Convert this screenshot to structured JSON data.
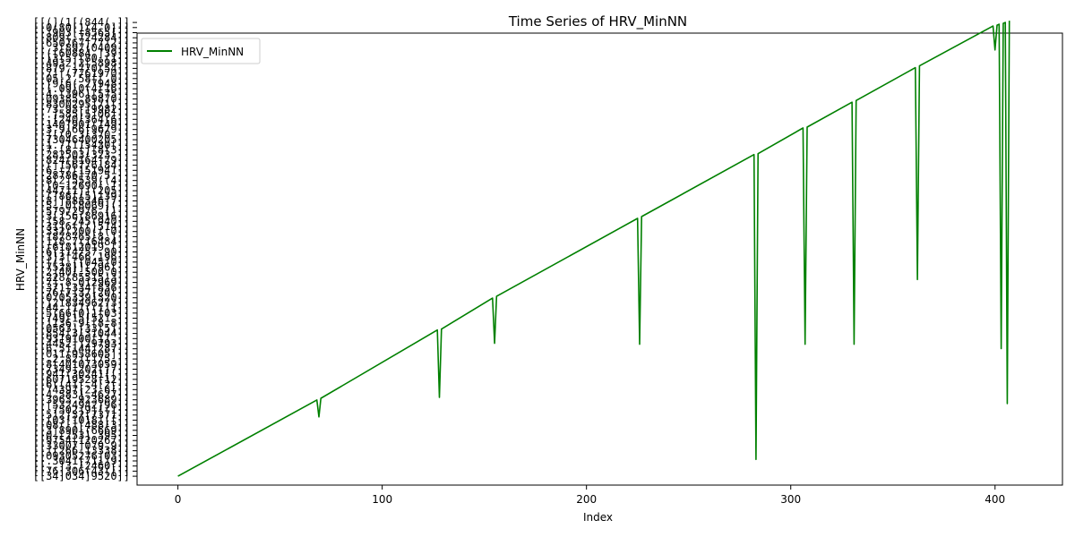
{
  "chart_data": {
    "type": "line",
    "title": "Time Series of HRV_MinNN",
    "xlabel": "Index",
    "ylabel": "HRV_MinNN",
    "xlim": [
      -20,
      433
    ],
    "xticks": [
      0,
      100,
      200,
      300,
      400
    ],
    "ylim": [
      -1,
      50
    ],
    "grid": false,
    "legend_position": "top-left",
    "series": [
      {
        "name": "HRV_MinNN",
        "color": "#008000",
        "points": [
          [
            0,
            0
          ],
          [
            68,
            8.6
          ],
          [
            69,
            6.7
          ],
          [
            70,
            8.8
          ],
          [
            127,
            16.5
          ],
          [
            128,
            8.9
          ],
          [
            129,
            16.6
          ],
          [
            154,
            20.1
          ],
          [
            155,
            15.0
          ],
          [
            156,
            20.3
          ],
          [
            225,
            29.1
          ],
          [
            226,
            14.9
          ],
          [
            227,
            29.3
          ],
          [
            282,
            36.3
          ],
          [
            283,
            1.9
          ],
          [
            284,
            36.4
          ],
          [
            306,
            39.3
          ],
          [
            307,
            14.9
          ],
          [
            308,
            39.4
          ],
          [
            330,
            42.2
          ],
          [
            331,
            14.9
          ],
          [
            332,
            42.4
          ],
          [
            361,
            46.1
          ],
          [
            362,
            22.2
          ],
          [
            363,
            46.3
          ],
          [
            399,
            50.8
          ],
          [
            400,
            48.1
          ],
          [
            401,
            50.9
          ],
          [
            402,
            51.0
          ],
          [
            403,
            14.4
          ],
          [
            404,
            51.1
          ],
          [
            405,
            51.2
          ],
          [
            406,
            8.2
          ],
          [
            407,
            51.4
          ]
        ]
      }
    ]
  }
}
